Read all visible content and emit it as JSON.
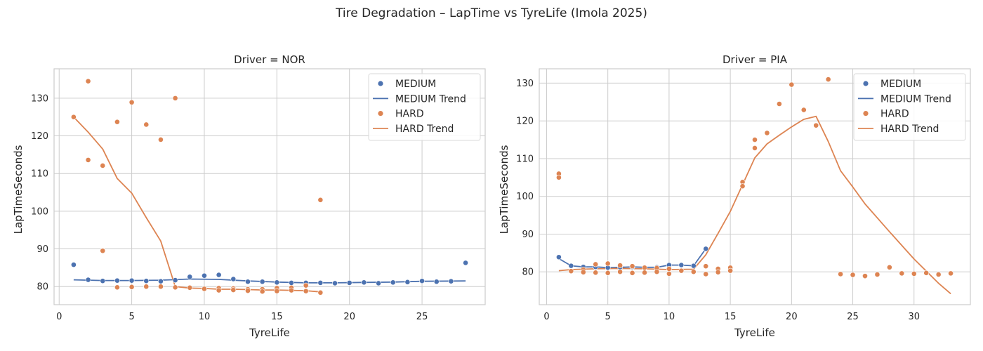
{
  "suptitle": "Tire Degradation – LapTime vs TyreLife (Imola 2025)",
  "colors": {
    "MEDIUM": "#4c72b0",
    "HARD": "#dd8452"
  },
  "chart_data": [
    {
      "type": "scatter",
      "title": "Driver = NOR",
      "xlabel": "TyreLife",
      "ylabel": "LapTimeSeconds",
      "xlim": [
        -0.35,
        29.35
      ],
      "ylim": [
        75.2,
        137.8
      ],
      "xticks": [
        0,
        5,
        10,
        15,
        20,
        25
      ],
      "yticks": [
        80,
        90,
        100,
        110,
        120,
        130
      ],
      "grid": true,
      "legend": "top-right",
      "legend_entries": [
        "MEDIUM",
        "MEDIUM Trend",
        "HARD",
        "HARD Trend"
      ],
      "series": [
        {
          "name": "MEDIUM",
          "kind": "points",
          "x": [
            1,
            2,
            3,
            4,
            5,
            6,
            7,
            8,
            9,
            10,
            11,
            12,
            13,
            14,
            15,
            16,
            17,
            18,
            19,
            20,
            21,
            22,
            23,
            24,
            25,
            26,
            27,
            28
          ],
          "y": [
            85.8,
            81.8,
            81.5,
            81.6,
            81.6,
            81.5,
            81.4,
            81.7,
            82.6,
            82.9,
            83.1,
            82.0,
            81.3,
            81.3,
            81.1,
            81.0,
            81.0,
            81.0,
            80.9,
            81.0,
            81.1,
            80.9,
            81.1,
            81.2,
            81.5,
            81.3,
            81.4,
            86.3
          ]
        },
        {
          "name": "MEDIUM Trend",
          "kind": "line",
          "x": [
            1,
            2,
            3,
            5,
            7,
            9,
            11,
            13,
            15,
            17,
            19,
            21,
            23,
            25,
            28
          ],
          "y": [
            81.8,
            81.7,
            81.6,
            81.6,
            81.7,
            82.0,
            81.9,
            81.5,
            81.2,
            81.0,
            81.0,
            81.1,
            81.2,
            81.4,
            81.5
          ]
        },
        {
          "name": "HARD",
          "kind": "points",
          "x": [
            1,
            2,
            2,
            3,
            3,
            4,
            4,
            5,
            5,
            6,
            6,
            7,
            7,
            8,
            8,
            9,
            10,
            11,
            11,
            12,
            12,
            13,
            13,
            14,
            14,
            15,
            15,
            16,
            16,
            17,
            17,
            18,
            18
          ],
          "y": [
            125.0,
            134.5,
            113.6,
            112.1,
            89.5,
            123.7,
            79.8,
            128.9,
            79.9,
            123.0,
            80.0,
            119.0,
            80.0,
            130.0,
            79.8,
            79.7,
            79.4,
            79.6,
            79.0,
            79.5,
            79.1,
            79.3,
            78.9,
            79.3,
            78.7,
            79.6,
            78.8,
            79.7,
            79.0,
            80.3,
            78.8,
            103.0,
            78.4
          ]
        },
        {
          "name": "HARD Trend",
          "kind": "line",
          "x": [
            1,
            2,
            3,
            4,
            5,
            6,
            7,
            8,
            9,
            10,
            11,
            12,
            13,
            14,
            15,
            16,
            17,
            18
          ],
          "y": [
            125.0,
            121.0,
            116.5,
            108.7,
            104.8,
            98.3,
            92.1,
            80.0,
            79.6,
            79.5,
            79.3,
            79.3,
            79.2,
            79.1,
            79.1,
            79.0,
            78.9,
            78.6
          ]
        }
      ]
    },
    {
      "type": "scatter",
      "title": "Driver = PIA",
      "xlabel": "TyreLife",
      "ylabel": "LapTimeSeconds",
      "xlim": [
        -0.6,
        34.6
      ],
      "ylim": [
        71.3,
        133.8
      ],
      "xticks": [
        0,
        5,
        10,
        15,
        20,
        25,
        30
      ],
      "yticks": [
        80,
        90,
        100,
        110,
        120,
        130
      ],
      "grid": true,
      "legend": "top-right",
      "legend_entries": [
        "MEDIUM",
        "MEDIUM Trend",
        "HARD",
        "HARD Trend"
      ],
      "series": [
        {
          "name": "MEDIUM",
          "kind": "points",
          "x": [
            1,
            2,
            3,
            4,
            5,
            6,
            7,
            8,
            9,
            10,
            11,
            12,
            13
          ],
          "y": [
            83.9,
            81.6,
            81.3,
            81.3,
            81.1,
            81.2,
            81.3,
            81.2,
            81.2,
            81.8,
            81.8,
            81.6,
            86.1
          ]
        },
        {
          "name": "MEDIUM Trend",
          "kind": "line",
          "x": [
            1,
            2,
            3,
            4,
            5,
            6,
            7,
            8,
            9,
            10,
            11,
            12,
            13
          ],
          "y": [
            83.5,
            81.6,
            81.3,
            81.3,
            81.1,
            81.2,
            81.3,
            81.2,
            81.2,
            81.8,
            81.8,
            81.6,
            86.1
          ]
        },
        {
          "name": "HARD",
          "kind": "points",
          "x": [
            1,
            1,
            2,
            3,
            3,
            4,
            4,
            5,
            5,
            6,
            6,
            7,
            7,
            8,
            8,
            9,
            9,
            10,
            10,
            11,
            12,
            13,
            13,
            14,
            14,
            15,
            15,
            16,
            16,
            17,
            17,
            18,
            19,
            20,
            21,
            22,
            23,
            24,
            25,
            26,
            27,
            28,
            29,
            30,
            31,
            32,
            33
          ],
          "y": [
            106.0,
            105.0,
            80.2,
            80.6,
            79.9,
            82.0,
            79.8,
            82.2,
            79.7,
            81.7,
            80.0,
            81.5,
            79.7,
            81.1,
            79.8,
            81.0,
            80.0,
            80.8,
            79.5,
            80.3,
            80.0,
            81.5,
            79.4,
            80.8,
            79.9,
            81.1,
            80.3,
            103.8,
            102.7,
            115.0,
            112.8,
            116.8,
            124.5,
            129.6,
            122.9,
            118.8,
            131.0,
            79.4,
            79.2,
            78.9,
            79.3,
            81.2,
            79.6,
            79.5,
            79.7,
            79.3,
            79.6
          ]
        },
        {
          "name": "HARD Trend",
          "kind": "line",
          "x": [
            1,
            2,
            4,
            6,
            8,
            10,
            12,
            13,
            14,
            15,
            16,
            17,
            18,
            19,
            20,
            21,
            22,
            23,
            24,
            25,
            26,
            28,
            30,
            32,
            33
          ],
          "y": [
            80.3,
            80.6,
            80.8,
            80.9,
            80.8,
            80.6,
            80.7,
            84.5,
            90.2,
            96.0,
            103.1,
            110.2,
            113.9,
            116.2,
            118.4,
            120.4,
            121.2,
            114.5,
            106.8,
            102.5,
            98.0,
            90.6,
            83.4,
            77.0,
            74.2
          ]
        }
      ]
    }
  ]
}
